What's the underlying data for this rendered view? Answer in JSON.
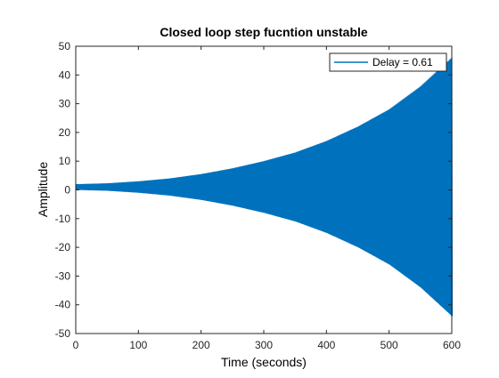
{
  "chart_data": {
    "type": "line",
    "title": "Closed loop step fucntion unstable",
    "xlabel": "Time (seconds)",
    "ylabel": "Amplitude",
    "xlim": [
      0,
      600
    ],
    "ylim": [
      -50,
      50
    ],
    "xticks": [
      0,
      100,
      200,
      300,
      400,
      500,
      600
    ],
    "yticks": [
      -50,
      -40,
      -30,
      -20,
      -10,
      0,
      10,
      20,
      30,
      40,
      50
    ],
    "grid": false,
    "legend_position": "top-right",
    "series": [
      {
        "name": "Delay = 0.61",
        "color": "#0072BD",
        "style": "oscillating response with growing envelope",
        "center": 1,
        "x": [
          0,
          50,
          100,
          150,
          200,
          250,
          300,
          350,
          400,
          450,
          500,
          550,
          600
        ],
        "upper_envelope": [
          2,
          2.3,
          3,
          4,
          5.5,
          7.5,
          10,
          13,
          17,
          22,
          28,
          36,
          46
        ],
        "lower_envelope": [
          0,
          -0.3,
          -1,
          -2,
          -3.5,
          -5.5,
          -8,
          -11,
          -15,
          -20,
          -26,
          -34,
          -44
        ]
      }
    ]
  }
}
